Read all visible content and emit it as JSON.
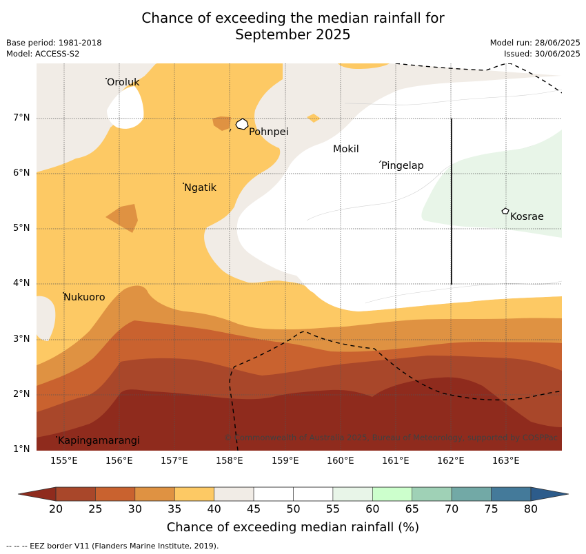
{
  "title_line1": "Chance of exceeding the median rainfall for",
  "title_line2": "September 2025",
  "meta": {
    "base_period": "Base period: 1981-2018",
    "model": "Model: ACCESS-S2",
    "model_run": "Model run: 28/06/2025",
    "issued": "Issued: 30/06/2025"
  },
  "axes": {
    "x_ticks": [
      "155°E",
      "156°E",
      "157°E",
      "158°E",
      "159°E",
      "160°E",
      "161°E",
      "162°E",
      "163°E"
    ],
    "y_ticks": [
      "7°N",
      "6°N",
      "5°N",
      "4°N",
      "3°N",
      "2°N",
      "1°N"
    ],
    "x_range": [
      154.5,
      164
    ],
    "y_range": [
      1,
      8
    ]
  },
  "places": {
    "oroluk": "Oroluk",
    "pohnpei": "Pohnpei",
    "mokil": "Mokil",
    "pingelap": "Pingelap",
    "ngatik": "Ngatik",
    "kosrae": "Kosrae",
    "nukuoro": "Nukuoro",
    "kapingamarangi": "Kapingamarangi"
  },
  "copyright": "© Commonwealth of Australia 2025, Bureau of Meteorology, supported by COSPPac",
  "colorbar": {
    "title": "Chance of exceeding median rainfall (%)",
    "labels": [
      "20",
      "25",
      "30",
      "35",
      "40",
      "45",
      "50",
      "55",
      "60",
      "65",
      "70",
      "75",
      "80"
    ],
    "colors": [
      "#a9472a",
      "#c9622f",
      "#df9242",
      "#fdc964",
      "#f1ece6",
      "#ffffff",
      "#ffffff",
      "#e8f5e8",
      "#ccffcc",
      "#9fd1b6",
      "#72a9a6",
      "#447a9a"
    ],
    "under_color": "#8f2b1d",
    "over_color": "#2d5c8b"
  },
  "footnote": "-- -- -- EEZ border V11 (Flanders Marine Institute, 2019)."
}
